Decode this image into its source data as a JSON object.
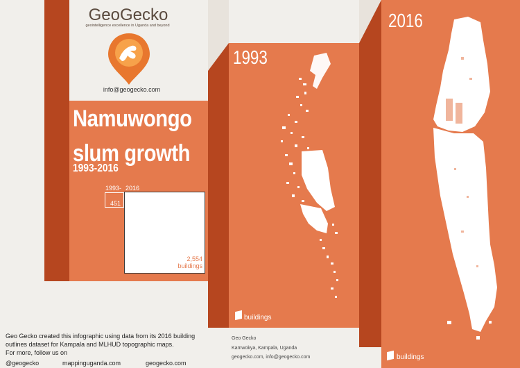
{
  "logo": {
    "name": "GeoGecko",
    "tagline": "geointelligence excellence in Uganda and beyond",
    "email": "info@geogecko.com"
  },
  "title_line1": "Namuwongo",
  "title_line2": "slum growth",
  "subtitle": "1993-2016",
  "comparison": {
    "label_1993": "1993-",
    "label_2016": "2016",
    "count_1993": "451",
    "count_2016": "2,554",
    "unit": "buildings"
  },
  "map_1993": {
    "year": "1993",
    "legend": "buildings"
  },
  "map_2016": {
    "year": "2016",
    "legend": "buildings"
  },
  "credit": {
    "org": "Geo Gecko",
    "address": "Kamwokya, Kampala, Uganda",
    "contact": "geogecko.com, info@geogecko.com"
  },
  "footer": {
    "line1": "Geo Gecko created this infographic using data from its 2016 building",
    "line2": "outlines dataset for Kampala and MLHUD topographic maps.",
    "line3": "For more, follow us on"
  },
  "links": [
    "@geogecko",
    "mappinguganda.com",
    "geogecko.com"
  ],
  "colors": {
    "panel": "#e57a4d",
    "fold": "#b6461f",
    "paper": "#f1efeb"
  }
}
